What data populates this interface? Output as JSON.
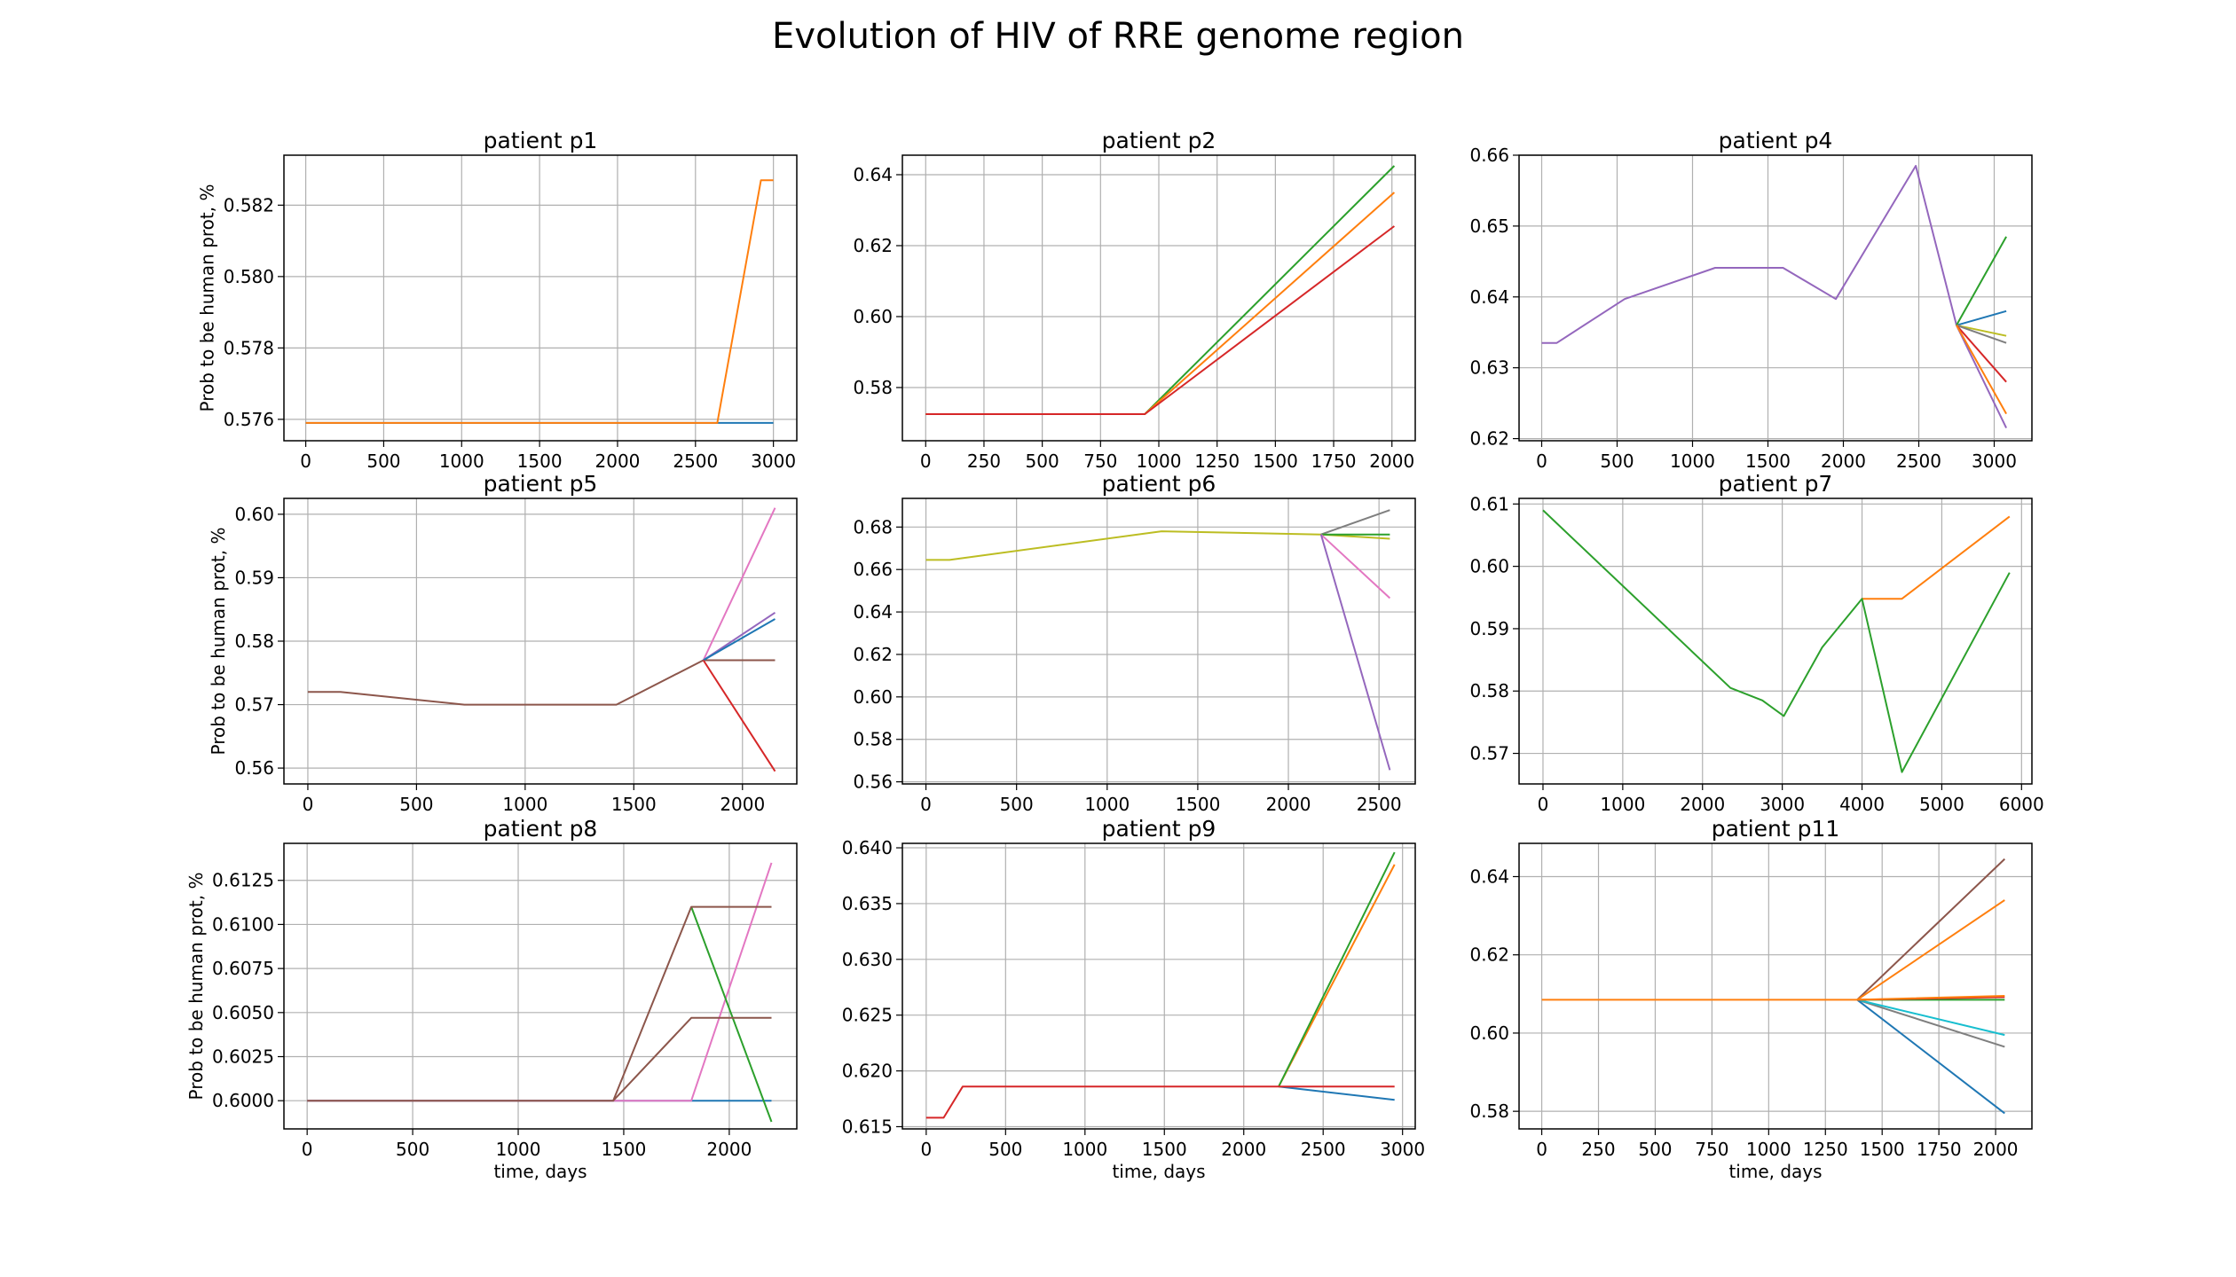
{
  "figure": {
    "title": "Evolution of HIV of RRE genome region"
  },
  "colors": [
    "#1f77b4",
    "#ff7f0e",
    "#2ca02c",
    "#d62728",
    "#9467bd",
    "#8c564b",
    "#e377c2",
    "#7f7f7f",
    "#bcbd22",
    "#17becf"
  ],
  "chart_data": [
    {
      "type": "line",
      "title": "patient p1",
      "xlabel": "",
      "ylabel": "Prob to be human prot, %",
      "xlim": [
        -140,
        3150
      ],
      "ylim": [
        0.5754,
        0.5834
      ],
      "grid": true,
      "xticks": [
        0,
        500,
        1000,
        1500,
        2000,
        2500,
        3000
      ],
      "xtick_labels": [
        "0",
        "500",
        "1000",
        "1500",
        "2000",
        "2500",
        "3000"
      ],
      "yticks": [
        0.576,
        0.578,
        0.58,
        0.582
      ],
      "ytick_labels": [
        "0.576",
        "0.578",
        "0.580",
        "0.582"
      ],
      "series": [
        {
          "color": "#1f77b4",
          "x": [
            0,
            2640,
            3000
          ],
          "y": [
            0.5759,
            0.5759,
            0.5759
          ]
        },
        {
          "color": "#ff7f0e",
          "x": [
            0,
            2640,
            2920,
            3000
          ],
          "y": [
            0.5759,
            0.5759,
            0.5827,
            0.5827
          ]
        }
      ]
    },
    {
      "type": "line",
      "title": "patient p2",
      "xlabel": "",
      "ylabel": "",
      "xlim": [
        -100,
        2100
      ],
      "ylim": [
        0.565,
        0.6455
      ],
      "grid": true,
      "xticks": [
        0,
        250,
        500,
        750,
        1000,
        1250,
        1500,
        1750,
        2000
      ],
      "xtick_labels": [
        "0",
        "250",
        "500",
        "750",
        "1000",
        "1250",
        "1500",
        "1750",
        "2000"
      ],
      "yticks": [
        0.58,
        0.6,
        0.62,
        0.64
      ],
      "ytick_labels": [
        "0.58",
        "0.60",
        "0.62",
        "0.64"
      ],
      "series": [
        {
          "color": "#2ca02c",
          "x": [
            0,
            940,
            2010
          ],
          "y": [
            0.5725,
            0.5725,
            0.6425
          ]
        },
        {
          "color": "#ff7f0e",
          "x": [
            0,
            940,
            2010
          ],
          "y": [
            0.5725,
            0.5725,
            0.635
          ]
        },
        {
          "color": "#d62728",
          "x": [
            0,
            940,
            2010
          ],
          "y": [
            0.5725,
            0.5725,
            0.6255
          ]
        }
      ]
    },
    {
      "type": "line",
      "title": "patient p4",
      "xlabel": "",
      "ylabel": "",
      "xlim": [
        -150,
        3250
      ],
      "ylim": [
        0.6197,
        0.66
      ],
      "grid": true,
      "xticks": [
        0,
        500,
        1000,
        1500,
        2000,
        2500,
        3000
      ],
      "xtick_labels": [
        "0",
        "500",
        "1000",
        "1500",
        "2000",
        "2500",
        "3000"
      ],
      "yticks": [
        0.62,
        0.63,
        0.64,
        0.65,
        0.66
      ],
      "ytick_labels": [
        "0.62",
        "0.63",
        "0.64",
        "0.65",
        "0.66"
      ],
      "series": [
        {
          "color": "#9467bd",
          "x": [
            0,
            100,
            550,
            1150,
            1600,
            1950,
            2480,
            2750,
            3080
          ],
          "y": [
            0.6335,
            0.6335,
            0.6397,
            0.6441,
            0.6441,
            0.6397,
            0.6585,
            0.636,
            0.6215
          ]
        },
        {
          "color": "#1f77b4",
          "x": [
            2750,
            3080
          ],
          "y": [
            0.636,
            0.638
          ]
        },
        {
          "color": "#2ca02c",
          "x": [
            2750,
            3080
          ],
          "y": [
            0.636,
            0.6485
          ]
        },
        {
          "color": "#bcbd22",
          "x": [
            2750,
            3080
          ],
          "y": [
            0.636,
            0.6345
          ]
        },
        {
          "color": "#7f7f7f",
          "x": [
            2750,
            3080
          ],
          "y": [
            0.636,
            0.6335
          ]
        },
        {
          "color": "#d62728",
          "x": [
            2750,
            3080
          ],
          "y": [
            0.636,
            0.628
          ]
        },
        {
          "color": "#ff7f0e",
          "x": [
            2750,
            3080
          ],
          "y": [
            0.636,
            0.6235
          ]
        }
      ]
    },
    {
      "type": "line",
      "title": "patient p5",
      "xlabel": "",
      "ylabel": "Prob to be human prot, %",
      "xlim": [
        -110,
        2250
      ],
      "ylim": [
        0.5575,
        0.6025
      ],
      "grid": true,
      "xticks": [
        0,
        500,
        1000,
        1500,
        2000
      ],
      "xtick_labels": [
        "0",
        "500",
        "1000",
        "1500",
        "2000"
      ],
      "yticks": [
        0.56,
        0.57,
        0.58,
        0.59,
        0.6
      ],
      "ytick_labels": [
        "0.56",
        "0.57",
        "0.58",
        "0.59",
        "0.60"
      ],
      "series": [
        {
          "color": "#8c564b",
          "x": [
            0,
            150,
            720,
            1420,
            1820,
            2150
          ],
          "y": [
            0.572,
            0.572,
            0.57,
            0.57,
            0.577,
            0.577
          ]
        },
        {
          "color": "#e377c2",
          "x": [
            1820,
            2150
          ],
          "y": [
            0.577,
            0.601
          ]
        },
        {
          "color": "#9467bd",
          "x": [
            1820,
            2150
          ],
          "y": [
            0.577,
            0.5845
          ]
        },
        {
          "color": "#1f77b4",
          "x": [
            1820,
            2150
          ],
          "y": [
            0.577,
            0.5835
          ]
        },
        {
          "color": "#d62728",
          "x": [
            1820,
            2150
          ],
          "y": [
            0.577,
            0.5595
          ]
        }
      ]
    },
    {
      "type": "line",
      "title": "patient p6",
      "xlabel": "",
      "ylabel": "",
      "xlim": [
        -130,
        2700
      ],
      "ylim": [
        0.559,
        0.6935
      ],
      "grid": true,
      "xticks": [
        0,
        500,
        1000,
        1500,
        2000,
        2500
      ],
      "xtick_labels": [
        "0",
        "500",
        "1000",
        "1500",
        "2000",
        "2500"
      ],
      "yticks": [
        0.56,
        0.58,
        0.6,
        0.62,
        0.64,
        0.66,
        0.68
      ],
      "ytick_labels": [
        "0.56",
        "0.58",
        "0.60",
        "0.62",
        "0.64",
        "0.66",
        "0.68"
      ],
      "series": [
        {
          "color": "#bcbd22",
          "x": [
            0,
            130,
            1300,
            2180,
            2560
          ],
          "y": [
            0.6645,
            0.6645,
            0.678,
            0.6765,
            0.6745
          ]
        },
        {
          "color": "#7f7f7f",
          "x": [
            2180,
            2560
          ],
          "y": [
            0.6765,
            0.688
          ]
        },
        {
          "color": "#2ca02c",
          "x": [
            2180,
            2560
          ],
          "y": [
            0.6765,
            0.6765
          ]
        },
        {
          "color": "#e377c2",
          "x": [
            2180,
            2560
          ],
          "y": [
            0.6765,
            0.6465
          ]
        },
        {
          "color": "#9467bd",
          "x": [
            2180,
            2560
          ],
          "y": [
            0.6765,
            0.5655
          ]
        }
      ]
    },
    {
      "type": "line",
      "title": "patient p7",
      "xlabel": "",
      "ylabel": "",
      "xlim": [
        -300,
        6130
      ],
      "ylim": [
        0.5651,
        0.6109
      ],
      "grid": true,
      "xticks": [
        0,
        1000,
        2000,
        3000,
        4000,
        5000,
        6000
      ],
      "xtick_labels": [
        "0",
        "1000",
        "2000",
        "3000",
        "4000",
        "5000",
        "6000"
      ],
      "yticks": [
        0.57,
        0.58,
        0.59,
        0.6,
        0.61
      ],
      "ytick_labels": [
        "0.57",
        "0.58",
        "0.59",
        "0.60",
        "0.61"
      ],
      "series": [
        {
          "color": "#ff7f0e",
          "x": [
            4000,
            4500,
            5850
          ],
          "y": [
            0.5948,
            0.5948,
            0.608
          ]
        },
        {
          "color": "#2ca02c",
          "x": [
            0,
            2350,
            2750,
            3020,
            3500,
            4000,
            4500,
            5850
          ],
          "y": [
            0.609,
            0.5805,
            0.5785,
            0.576,
            0.587,
            0.5948,
            0.567,
            0.599
          ]
        }
      ]
    },
    {
      "type": "line",
      "title": "patient p8",
      "xlabel": "time, days",
      "ylabel": "Prob to be human prot, %",
      "xlim": [
        -110,
        2320
      ],
      "ylim": [
        0.5984,
        0.6146
      ],
      "grid": true,
      "xticks": [
        0,
        500,
        1000,
        1500,
        2000
      ],
      "xtick_labels": [
        "0",
        "500",
        "1000",
        "1500",
        "2000"
      ],
      "yticks": [
        0.6,
        0.6025,
        0.605,
        0.6075,
        0.61,
        0.6125
      ],
      "ytick_labels": [
        "0.6000",
        "0.6025",
        "0.6050",
        "0.6075",
        "0.6100",
        "0.6125"
      ],
      "series": [
        {
          "color": "#1f77b4",
          "x": [
            0,
            1450,
            2200
          ],
          "y": [
            0.6,
            0.6,
            0.6
          ]
        },
        {
          "color": "#e377c2",
          "x": [
            0,
            1450,
            1820,
            2200
          ],
          "y": [
            0.6,
            0.6,
            0.6,
            0.6135
          ]
        },
        {
          "color": "#2ca02c",
          "x": [
            1820,
            2200
          ],
          "y": [
            0.611,
            0.5988
          ]
        },
        {
          "color": "#8c564b",
          "x": [
            0,
            1450,
            1820,
            2200
          ],
          "y": [
            0.6,
            0.6,
            0.611,
            0.611
          ]
        },
        {
          "color": "#8c564b",
          "x": [
            1450,
            1820,
            2200
          ],
          "y": [
            0.6,
            0.6047,
            0.6047
          ]
        }
      ]
    },
    {
      "type": "line",
      "title": "patient p9",
      "xlabel": "time, days",
      "ylabel": "",
      "xlim": [
        -150,
        3080
      ],
      "ylim": [
        0.6148,
        0.6404
      ],
      "grid": true,
      "xticks": [
        0,
        500,
        1000,
        1500,
        2000,
        2500,
        3000
      ],
      "xtick_labels": [
        "0",
        "500",
        "1000",
        "1500",
        "2000",
        "2500",
        "3000"
      ],
      "yticks": [
        0.615,
        0.62,
        0.625,
        0.63,
        0.635,
        0.64
      ],
      "ytick_labels": [
        "0.615",
        "0.620",
        "0.625",
        "0.630",
        "0.635",
        "0.640"
      ],
      "series": [
        {
          "color": "#1f77b4",
          "x": [
            2220,
            2950
          ],
          "y": [
            0.6186,
            0.6174
          ]
        },
        {
          "color": "#ff7f0e",
          "x": [
            2220,
            2950
          ],
          "y": [
            0.6186,
            0.6385
          ]
        },
        {
          "color": "#2ca02c",
          "x": [
            2220,
            2950
          ],
          "y": [
            0.6186,
            0.6396
          ]
        },
        {
          "color": "#d62728",
          "x": [
            0,
            110,
            230,
            2220,
            2950
          ],
          "y": [
            0.6158,
            0.6158,
            0.6186,
            0.6186,
            0.6186
          ]
        }
      ]
    },
    {
      "type": "line",
      "title": "patient p11",
      "xlabel": "time, days",
      "ylabel": "",
      "xlim": [
        -100,
        2160
      ],
      "ylim": [
        0.5755,
        0.6485
      ],
      "grid": true,
      "xticks": [
        0,
        250,
        500,
        750,
        1000,
        1250,
        1500,
        1750,
        2000
      ],
      "xtick_labels": [
        "0",
        "250",
        "500",
        "750",
        "1000",
        "1250",
        "1500",
        "1750",
        "2000"
      ],
      "yticks": [
        0.58,
        0.6,
        0.62,
        0.64
      ],
      "ytick_labels": [
        "0.58",
        "0.60",
        "0.62",
        "0.64"
      ],
      "series": [
        {
          "color": "#8c564b",
          "x": [
            1390,
            2040
          ],
          "y": [
            0.6085,
            0.6445
          ]
        },
        {
          "color": "#7f7f7f",
          "x": [
            1390,
            2040
          ],
          "y": [
            0.6085,
            0.5965
          ]
        },
        {
          "color": "#17becf",
          "x": [
            1390,
            2040
          ],
          "y": [
            0.6085,
            0.5995
          ]
        },
        {
          "color": "#1f77b4",
          "x": [
            1390,
            2040
          ],
          "y": [
            0.6085,
            0.5795
          ]
        },
        {
          "color": "#2ca02c",
          "x": [
            1390,
            2040
          ],
          "y": [
            0.6085,
            0.6085
          ]
        },
        {
          "color": "#d62728",
          "x": [
            1390,
            2040
          ],
          "y": [
            0.6085,
            0.6092
          ]
        },
        {
          "color": "#ff7f0e",
          "x": [
            0,
            1390,
            2040
          ],
          "y": [
            0.6085,
            0.6085,
            0.6095
          ]
        },
        {
          "color": "#ff7f0e",
          "x": [
            1390,
            2040
          ],
          "y": [
            0.6085,
            0.634
          ]
        }
      ]
    }
  ]
}
